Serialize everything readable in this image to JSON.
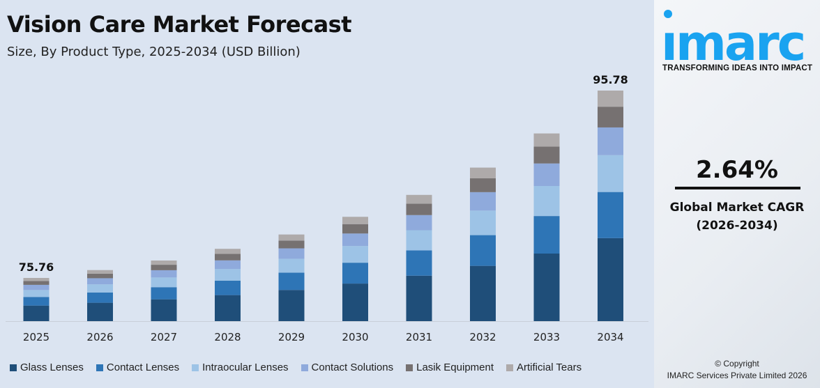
{
  "header": {
    "title": "Vision Care Market Forecast",
    "subtitle": "Size, By Product Type, 2025-2034 (USD Billion)"
  },
  "chart_data": {
    "type": "bar",
    "stacked": true,
    "categories": [
      "2025",
      "2026",
      "2027",
      "2028",
      "2029",
      "2030",
      "2031",
      "2032",
      "2033",
      "2034"
    ],
    "totals": [
      75.76,
      77.76,
      79.81,
      81.92,
      84.08,
      86.3,
      88.58,
      90.92,
      93.32,
      95.78
    ],
    "total_labels": {
      "2025": "75.76",
      "2034": "95.78"
    },
    "series": [
      {
        "name": "Glass Lenses",
        "color": "#1f4e79",
        "share": 0.36
      },
      {
        "name": "Contact Lenses",
        "color": "#2e75b6",
        "share": 0.2
      },
      {
        "name": "Intraocular Lenses",
        "color": "#9dc3e6",
        "share": 0.16
      },
      {
        "name": "Contact Solutions",
        "color": "#8faadc",
        "share": 0.12
      },
      {
        "name": "Lasik Equipment",
        "color": "#767171",
        "share": 0.09
      },
      {
        "name": "Artificial Tears",
        "color": "#aeaaaa",
        "share": 0.07
      }
    ],
    "legend": "bottom",
    "grid": false,
    "yaxis_visible": false
  },
  "side": {
    "logo": "imarc",
    "tagline": "TRANSFORMING IDEAS INTO IMPACT",
    "cagr": "2.64%",
    "cagr_label": "Global Market CAGR",
    "cagr_period": "(2026-2034)",
    "copyright": "© Copyright",
    "company": "IMARC Services Private Limited 2026",
    "brand_color": "#1aa3f0"
  }
}
